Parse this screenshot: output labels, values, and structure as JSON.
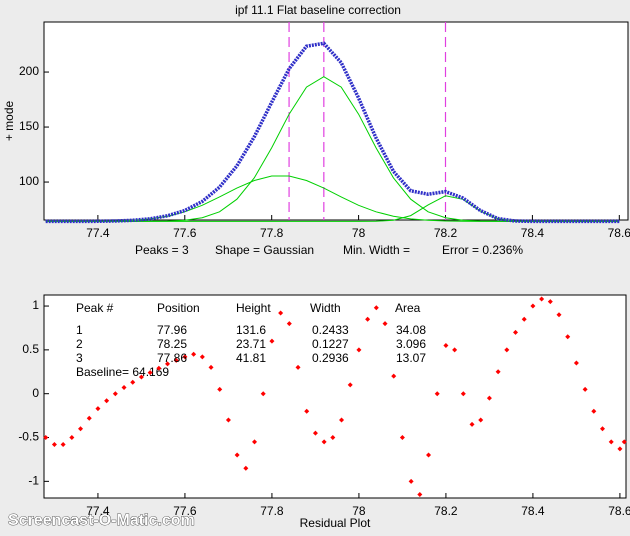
{
  "title": "ipf 11.1   Flat baseline correction",
  "watermark": "Screencast-O-Matic.com",
  "chart_data": [
    {
      "type": "line",
      "ylabel": "+ mode",
      "annotations": [
        "Peaks = 3",
        "Shape = Gaussian",
        "Min. Width =",
        "Error = 0.236%"
      ],
      "xlim": [
        77.276,
        78.62
      ],
      "ylim": [
        65.5,
        245.5
      ],
      "xticks": [
        77.4,
        77.6,
        77.8,
        78,
        78.2,
        78.4,
        78.6
      ],
      "yticks": [
        100,
        150,
        200
      ],
      "markers": {
        "x": [
          77.84,
          77.92,
          78.2
        ],
        "color": "#e040e0"
      },
      "x": [
        77.28,
        77.32,
        77.36,
        77.4,
        77.44,
        77.48,
        77.52,
        77.56,
        77.6,
        77.64,
        77.68,
        77.72,
        77.76,
        77.8,
        77.84,
        77.88,
        77.92,
        77.96,
        78,
        78.04,
        78.08,
        78.12,
        78.16,
        78.2,
        78.24,
        78.28,
        78.32,
        78.36,
        78.4,
        78.44,
        78.48,
        78.52,
        78.56,
        78.6
      ],
      "series": [
        {
          "color": "#3030c8",
          "width": 3.5,
          "values": [
            64.2,
            64.2,
            64.2,
            64.3,
            64.6,
            65.2,
            66.6,
            69.3,
            74.1,
            82.3,
            95.3,
            114.7,
            141.1,
            172.5,
            203.0,
            223.5,
            226.1,
            208.6,
            176.4,
            140.1,
            109.8,
            92.0,
            89.0,
            91.3,
            85.5,
            74.1,
            66.9,
            64.6,
            64.2,
            64.2,
            64.2,
            64.2,
            64.2,
            64.2
          ]
        },
        {
          "color": "#00d000",
          "width": 1,
          "values": [
            64.2,
            64.2,
            64.2,
            64.2,
            64.2,
            64.2,
            64.3,
            64.5,
            65.3,
            67.6,
            73.0,
            84.4,
            103.9,
            131.2,
            161.7,
            186.3,
            195.8,
            186.3,
            161.7,
            131.2,
            103.9,
            84.4,
            73.0,
            67.6,
            65.3,
            64.5,
            64.3,
            64.2,
            64.2,
            64.2,
            64.2,
            64.2,
            64.2,
            64.2
          ]
        },
        {
          "color": "#00d000",
          "width": 1,
          "values": [
            64.2,
            64.2,
            64.2,
            64.2,
            64.2,
            64.2,
            64.2,
            64.2,
            64.2,
            64.2,
            64.2,
            64.2,
            64.2,
            64.2,
            64.2,
            64.2,
            64.2,
            64.2,
            64.2,
            64.3,
            65.3,
            69.5,
            79.2,
            87.5,
            84.3,
            73.8,
            66.8,
            64.6,
            64.2,
            64.2,
            64.2,
            64.2,
            64.2,
            64.2
          ]
        },
        {
          "color": "#00d000",
          "width": 1,
          "values": [
            64.2,
            64.2,
            64.2,
            64.3,
            64.6,
            65.2,
            66.5,
            69.0,
            73.0,
            78.9,
            86.5,
            94.5,
            101.4,
            105.5,
            105.5,
            101.4,
            94.5,
            86.5,
            78.9,
            73.0,
            69.0,
            66.5,
            65.2,
            64.6,
            64.3,
            64.2,
            64.2,
            64.2,
            64.2,
            64.2,
            64.2,
            64.2,
            64.2,
            64.2
          ]
        }
      ]
    },
    {
      "type": "scatter",
      "xlabel": "Residual Plot",
      "color": "#ff0000",
      "xlim": [
        77.276,
        78.614
      ],
      "ylim": [
        -1.19,
        1.126
      ],
      "xticks": [
        77.4,
        77.6,
        77.8,
        78,
        78.2,
        78.4,
        78.6
      ],
      "yticks": [
        -1,
        -0.5,
        0,
        0.5,
        1
      ],
      "x": [
        77.28,
        77.3,
        77.32,
        77.34,
        77.36,
        77.38,
        77.4,
        77.42,
        77.44,
        77.46,
        77.48,
        77.5,
        77.52,
        77.54,
        77.56,
        77.58,
        77.6,
        77.62,
        77.64,
        77.66,
        77.68,
        77.7,
        77.72,
        77.74,
        77.76,
        77.78,
        77.8,
        77.82,
        77.84,
        77.86,
        77.88,
        77.9,
        77.92,
        77.94,
        77.96,
        77.98,
        78,
        78.02,
        78.04,
        78.06,
        78.08,
        78.1,
        78.12,
        78.14,
        78.16,
        78.18,
        78.2,
        78.22,
        78.24,
        78.26,
        78.28,
        78.3,
        78.32,
        78.34,
        78.36,
        78.38,
        78.4,
        78.42,
        78.44,
        78.46,
        78.48,
        78.5,
        78.52,
        78.54,
        78.56,
        78.58,
        78.6,
        78.61
      ],
      "values": [
        -0.5,
        -0.58,
        -0.58,
        -0.5,
        -0.4,
        -0.28,
        -0.17,
        -0.08,
        0.0,
        0.07,
        0.13,
        0.19,
        0.24,
        0.29,
        0.34,
        0.38,
        0.42,
        0.45,
        0.42,
        0.3,
        0.05,
        -0.3,
        -0.7,
        -0.85,
        -0.55,
        0.0,
        0.6,
        0.92,
        0.8,
        0.3,
        -0.2,
        -0.45,
        -0.55,
        -0.5,
        -0.3,
        0.1,
        0.5,
        0.85,
        0.98,
        0.8,
        0.2,
        -0.5,
        -1.0,
        -1.15,
        -0.7,
        0.0,
        0.55,
        0.5,
        0.0,
        -0.35,
        -0.3,
        -0.05,
        0.25,
        0.5,
        0.7,
        0.85,
        1.0,
        1.08,
        1.05,
        0.9,
        0.65,
        0.35,
        0.05,
        -0.2,
        -0.4,
        -0.55,
        -0.63,
        -0.55
      ],
      "table": {
        "header": [
          "Peak #",
          "Position",
          "Height",
          "Width",
          "Area"
        ],
        "rows": [
          [
            "1",
            "77.96",
            "131.6",
            "0.2433",
            "34.08"
          ],
          [
            "2",
            "78.25",
            "23.71",
            "0.1227",
            "3.096"
          ],
          [
            "3",
            "77.86",
            "41.81",
            "0.2936",
            "13.07"
          ]
        ],
        "baseline": "Baseline= 64.169"
      }
    }
  ]
}
